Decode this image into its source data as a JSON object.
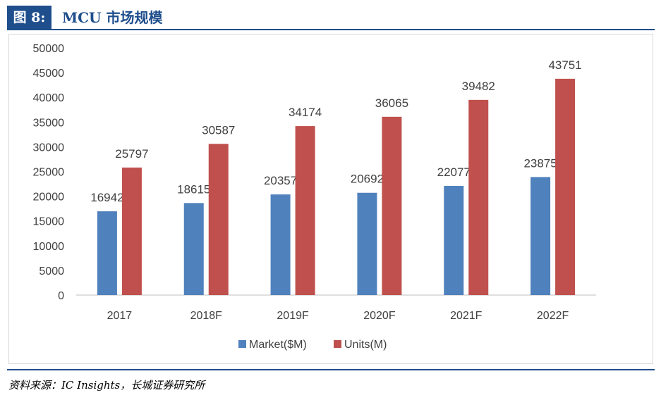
{
  "figure": {
    "tag": "图 8:",
    "title": "MCU 市场规模"
  },
  "source": "资料来源：IC Insights，长城证券研究所",
  "chart_data": {
    "type": "bar",
    "categories": [
      "2017",
      "2018F",
      "2019F",
      "2020F",
      "2021F",
      "2022F"
    ],
    "series": [
      {
        "name": "Market($M)",
        "color": "#4f81bd",
        "values": [
          16942,
          18615,
          20357,
          20692,
          22077,
          23875
        ]
      },
      {
        "name": "Units(M)",
        "color": "#c0504d",
        "values": [
          25797,
          30587,
          34174,
          36065,
          39482,
          43751
        ]
      }
    ],
    "yticks": [
      0,
      5000,
      10000,
      15000,
      20000,
      25000,
      30000,
      35000,
      40000,
      45000,
      50000
    ],
    "ylim": [
      0,
      50000
    ],
    "grid": false,
    "legend": "bottom",
    "data_labels": true
  }
}
